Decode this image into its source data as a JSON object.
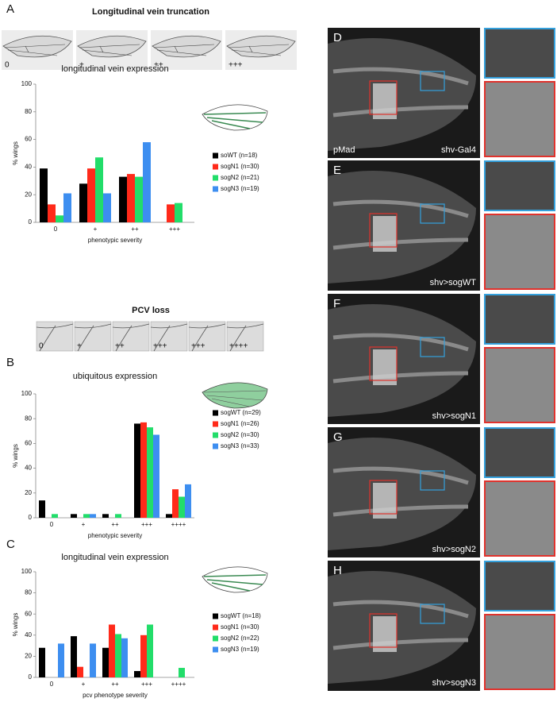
{
  "figure": {
    "panel_a": {
      "letter": "A",
      "title": "Longitudinal vein truncation",
      "wing_labels": [
        "0",
        "+",
        "++",
        "+++"
      ]
    },
    "pcv": {
      "title": "PCV loss",
      "labels": [
        "0",
        "+",
        "++",
        "+++",
        "+++",
        "++++"
      ]
    },
    "panel_b": {
      "letter": "B"
    },
    "panel_c": {
      "letter": "C"
    },
    "micrographs": [
      {
        "letter": "D",
        "labels": [
          "pMad",
          "shv-Gal4"
        ]
      },
      {
        "letter": "E",
        "labels": [
          "shv>sogWT"
        ]
      },
      {
        "letter": "F",
        "labels": [
          "shv>sogN1"
        ]
      },
      {
        "letter": "G",
        "labels": [
          "shv>sogN2"
        ]
      },
      {
        "letter": "H",
        "labels": [
          "shv>sogN3"
        ]
      }
    ]
  },
  "chart_data": [
    {
      "type": "bar",
      "title": "longitudinal vein expression",
      "x_label": "phenotypic severity",
      "y_label": "% wings",
      "categories": [
        "0",
        "+",
        "++",
        "+++"
      ],
      "ylim": [
        0,
        100
      ],
      "yticks": [
        0,
        20,
        40,
        60,
        80,
        100
      ],
      "series": [
        {
          "name": "soWT (n=18)",
          "color": "#000000",
          "values": [
            39,
            28,
            33,
            0
          ]
        },
        {
          "name": "sogN1 (n=30)",
          "color": "#ff2a1a",
          "values": [
            13,
            39,
            35,
            13
          ]
        },
        {
          "name": "sogN2 (n=21)",
          "color": "#22dd6a",
          "values": [
            5,
            47,
            33,
            14
          ]
        },
        {
          "name": "sogN3 (n=19)",
          "color": "#3d8ef0",
          "values": [
            21,
            21,
            58,
            0
          ]
        }
      ]
    },
    {
      "type": "bar",
      "title": "ubiquitous expression",
      "x_label": "phenotypic severity",
      "y_label": "% wings",
      "categories": [
        "0",
        "+",
        "++",
        "+++",
        "++++"
      ],
      "ylim": [
        0,
        100
      ],
      "yticks": [
        0,
        20,
        40,
        60,
        80,
        100
      ],
      "series": [
        {
          "name": "sogWT (n=29)",
          "color": "#000000",
          "values": [
            14,
            3,
            3,
            76,
            3
          ]
        },
        {
          "name": "sogN1 (n=26)",
          "color": "#ff2a1a",
          "values": [
            0,
            0,
            0,
            77,
            23
          ]
        },
        {
          "name": "sogN2 (n=30)",
          "color": "#22dd6a",
          "values": [
            3,
            3,
            3,
            73,
            17
          ]
        },
        {
          "name": "sogN3 (n=33)",
          "color": "#3d8ef0",
          "values": [
            0,
            3,
            0,
            67,
            27
          ]
        }
      ]
    },
    {
      "type": "bar",
      "title": "longitudinal vein expression",
      "x_label": "pcv phenotype severity",
      "y_label": "% wings",
      "categories": [
        "0",
        "+",
        "++",
        "+++",
        "++++"
      ],
      "ylim": [
        0,
        100
      ],
      "yticks": [
        0,
        20,
        40,
        60,
        80,
        100
      ],
      "series": [
        {
          "name": "sogWT (n=18)",
          "color": "#000000",
          "values": [
            28,
            39,
            28,
            6,
            0
          ]
        },
        {
          "name": "sogN1 (n=30)",
          "color": "#ff2a1a",
          "values": [
            0,
            10,
            50,
            40,
            0
          ]
        },
        {
          "name": "sogN2 (n=22)",
          "color": "#22dd6a",
          "values": [
            0,
            0,
            41,
            50,
            9
          ]
        },
        {
          "name": "sogN3 (n=19)",
          "color": "#3d8ef0",
          "values": [
            32,
            32,
            37,
            0,
            0
          ]
        }
      ]
    }
  ]
}
